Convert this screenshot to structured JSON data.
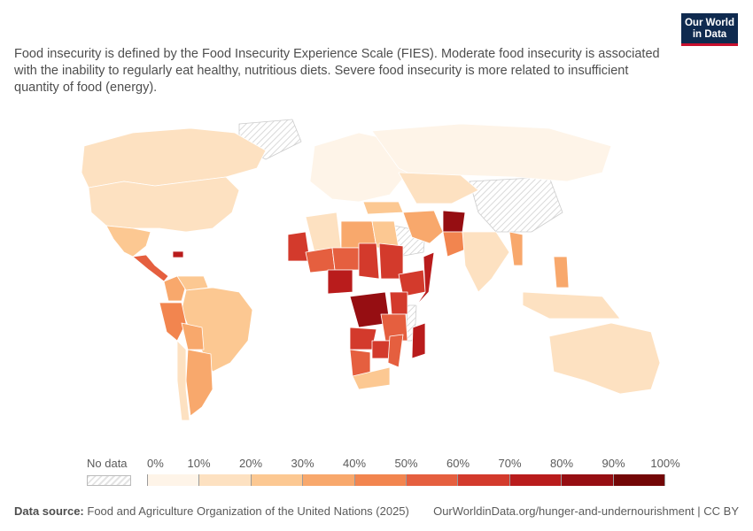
{
  "subtitle": "Food insecurity is defined by the Food Insecurity Experience Scale (FIES). Moderate food insecurity is associated with the inability to regularly eat healthy, nutritious diets. Severe food insecurity is more related to insufficient quantity of food (energy).",
  "logo": {
    "line1": "Our World",
    "line2": "in Data"
  },
  "legend": {
    "no_data_label": "No data",
    "ticks": [
      "0%",
      "10%",
      "20%",
      "30%",
      "40%",
      "50%",
      "60%",
      "70%",
      "80%",
      "90%",
      "100%"
    ],
    "colors": [
      "#fef4e8",
      "#fde1c1",
      "#fcc892",
      "#f8a86c",
      "#f2854f",
      "#e55f3f",
      "#d33a2c",
      "#b91c1c",
      "#960e12",
      "#730707"
    ]
  },
  "footer": {
    "source_label": "Data source:",
    "source_text": "Food and Agriculture Organization of the United Nations (2025)",
    "url": "OurWorldinData.org/hunger-and-undernourishment | CC BY"
  },
  "chart_data": {
    "type": "choropleth",
    "colorbar_range": [
      0,
      100
    ],
    "unit": "%",
    "regions": [
      {
        "name": "Canada",
        "value": 15
      },
      {
        "name": "United States",
        "value": 12
      },
      {
        "name": "Mexico",
        "value": 22
      },
      {
        "name": "Central America",
        "value": 50
      },
      {
        "name": "Haiti",
        "value": 70
      },
      {
        "name": "Colombia",
        "value": 35
      },
      {
        "name": "Venezuela",
        "value": 20
      },
      {
        "name": "Brazil",
        "value": 25
      },
      {
        "name": "Peru",
        "value": 45
      },
      {
        "name": "Bolivia",
        "value": 30
      },
      {
        "name": "Argentina",
        "value": 30
      },
      {
        "name": "Chile",
        "value": 15
      },
      {
        "name": "Europe",
        "value": 8
      },
      {
        "name": "Russia",
        "value": 5
      },
      {
        "name": "Kazakhstan",
        "value": 10
      },
      {
        "name": "Turkey",
        "value": 20
      },
      {
        "name": "Iran",
        "value": 30
      },
      {
        "name": "Afghanistan",
        "value": 80
      },
      {
        "name": "Pakistan",
        "value": 40
      },
      {
        "name": "India",
        "value": 15
      },
      {
        "name": "Myanmar",
        "value": 30
      },
      {
        "name": "Philippines",
        "value": 35
      },
      {
        "name": "Indonesia",
        "value": 10
      },
      {
        "name": "Australia",
        "value": 13
      },
      {
        "name": "Algeria",
        "value": 18
      },
      {
        "name": "Libya",
        "value": 30
      },
      {
        "name": "Egypt",
        "value": 25
      },
      {
        "name": "Mauritania",
        "value": 60
      },
      {
        "name": "Mali",
        "value": 50
      },
      {
        "name": "Niger",
        "value": 55
      },
      {
        "name": "Chad",
        "value": 60
      },
      {
        "name": "Nigeria",
        "value": 70
      },
      {
        "name": "Sudan",
        "value": 65
      },
      {
        "name": "Ethiopia",
        "value": 60
      },
      {
        "name": "Somalia",
        "value": 75
      },
      {
        "name": "DR Congo",
        "value": 80
      },
      {
        "name": "Kenya",
        "value": 60
      },
      {
        "name": "Tanzania",
        "value": 55
      },
      {
        "name": "Angola",
        "value": 60
      },
      {
        "name": "Zambia",
        "value": 60
      },
      {
        "name": "Mozambique",
        "value": 55
      },
      {
        "name": "Madagascar",
        "value": 70
      },
      {
        "name": "Namibia",
        "value": 50
      },
      {
        "name": "South Africa",
        "value": 25
      }
    ]
  }
}
